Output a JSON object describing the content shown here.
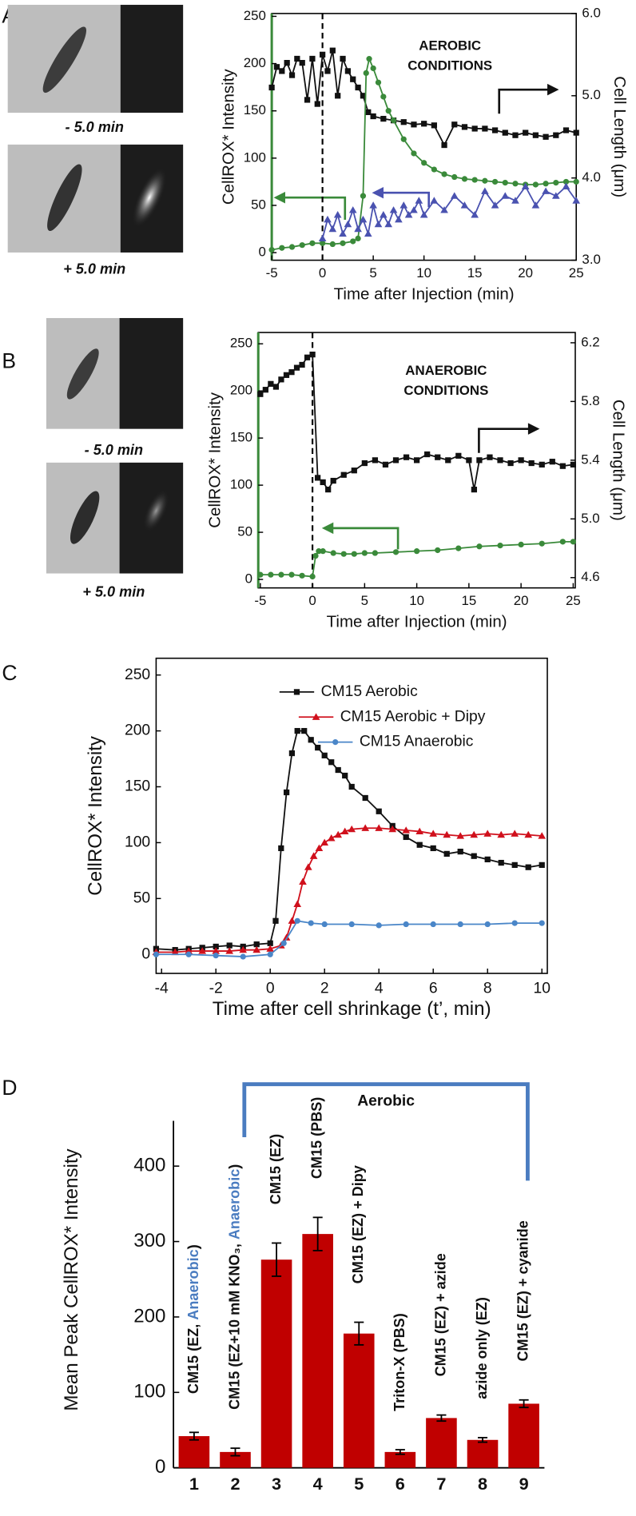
{
  "chart_data": [
    {
      "panel": "A",
      "type": "line",
      "image_captions": [
        "- 5.0 min",
        "+ 5.0 min"
      ],
      "annotation": [
        "AEROBIC",
        "CONDITIONS"
      ],
      "xlabel": "Time after Injection (min)",
      "ylabel": "CellROX* Intensity",
      "y2label": "Cell Length (μm)",
      "xlim": [
        -5,
        25
      ],
      "xticks": [
        -5,
        0,
        5,
        10,
        15,
        20,
        25
      ],
      "ylim": [
        -8,
        253
      ],
      "yticks": [
        0,
        50,
        100,
        150,
        200,
        250
      ],
      "y2lim": [
        3,
        6
      ],
      "y2ticks": [
        {
          "value": 3,
          "label": "3.0"
        },
        {
          "value": 4,
          "label": "4.0"
        },
        {
          "value": 5,
          "label": "5.0"
        },
        {
          "value": 6,
          "label": "6.0"
        }
      ],
      "axis_color": "#3a8a3a",
      "vline_x": 0,
      "series": [
        {
          "color": "#111111",
          "marker": "square",
          "axis": "y2",
          "x": [
            -5,
            -4.5,
            -4,
            -3.5,
            -3,
            -2.5,
            -2,
            -1.5,
            -1,
            -0.5,
            0,
            0.5,
            1,
            1.5,
            2,
            2.5,
            3,
            3.5,
            4,
            4.5,
            5,
            6,
            7,
            8,
            9,
            10,
            11,
            12,
            13,
            14,
            15,
            16,
            17,
            18,
            19,
            20,
            21,
            22,
            23,
            24,
            25
          ],
          "values": [
            5.1,
            5.35,
            5.3,
            5.4,
            5.25,
            5.45,
            5.4,
            4.95,
            5.45,
            4.9,
            5.5,
            5.3,
            5.55,
            5.0,
            5.45,
            5.3,
            5.2,
            5.1,
            5.0,
            4.8,
            4.75,
            4.72,
            4.7,
            4.68,
            4.65,
            4.66,
            4.64,
            4.4,
            4.65,
            4.62,
            4.6,
            4.6,
            4.58,
            4.55,
            4.52,
            4.55,
            4.52,
            4.5,
            4.52,
            4.58,
            4.55
          ]
        },
        {
          "color": "#3a8a3a",
          "marker": "circle",
          "x": [
            -5,
            -4,
            -3,
            -2,
            -1,
            0,
            1,
            2,
            3,
            3.5,
            4,
            4.3,
            4.6,
            5,
            5.5,
            6,
            6.5,
            7,
            8,
            9,
            10,
            11,
            12,
            13,
            14,
            15,
            16,
            17,
            18,
            19,
            20,
            21,
            22,
            23,
            24,
            25
          ],
          "values": [
            3,
            5,
            6,
            8,
            10,
            10,
            9,
            10,
            12,
            15,
            60,
            190,
            205,
            195,
            180,
            165,
            150,
            140,
            120,
            105,
            95,
            88,
            83,
            80,
            78,
            77,
            76,
            75,
            74,
            73,
            72,
            72,
            73,
            74,
            75,
            75
          ]
        },
        {
          "color": "#4a52b0",
          "marker": "triangle",
          "x": [
            0,
            0.5,
            1,
            1.5,
            2,
            2.5,
            3,
            3.5,
            4,
            4.5,
            5,
            5.5,
            6,
            6.5,
            7,
            7.5,
            8,
            8.5,
            9,
            9.5,
            10,
            11,
            12,
            13,
            14,
            15,
            16,
            17,
            18,
            19,
            20,
            21,
            22,
            23,
            24,
            25
          ],
          "values": [
            15,
            35,
            25,
            40,
            20,
            30,
            45,
            25,
            35,
            20,
            50,
            30,
            40,
            30,
            45,
            35,
            50,
            40,
            45,
            55,
            40,
            55,
            45,
            60,
            50,
            40,
            65,
            50,
            60,
            55,
            70,
            50,
            65,
            60,
            70,
            55
          ]
        }
      ]
    },
    {
      "panel": "B",
      "type": "line",
      "image_captions": [
        "- 5.0 min",
        "+ 5.0 min"
      ],
      "annotation": [
        "ANAEROBIC",
        "CONDITIONS"
      ],
      "xlabel": "Time after Injection (min)",
      "ylabel": "CellROX* Intensity",
      "y2label": "Cell Length (μm)",
      "xlim": [
        -5.2,
        25.2
      ],
      "xticks": [
        -5,
        0,
        5,
        10,
        15,
        20,
        25
      ],
      "ylim": [
        -9,
        262
      ],
      "yticks": [
        0,
        50,
        100,
        150,
        200,
        250
      ],
      "y2lim": [
        4.53,
        6.27
      ],
      "y2ticks": [
        4.6,
        {
          "value": 5,
          "label": "5.0"
        },
        5.4,
        5.8,
        6.2
      ],
      "axis_color": "#3a8a3a",
      "vline_x": 0,
      "series": [
        {
          "color": "#111111",
          "marker": "square",
          "axis": "y2",
          "x": [
            -5,
            -4.5,
            -4,
            -3.5,
            -3,
            -2.5,
            -2,
            -1.5,
            -1,
            -0.5,
            0,
            0.5,
            1,
            1.5,
            2,
            3,
            4,
            5,
            6,
            7,
            8,
            9,
            10,
            11,
            12,
            13,
            14,
            15,
            15.5,
            16,
            17,
            18,
            19,
            20,
            21,
            22,
            23,
            24,
            25
          ],
          "values": [
            5.85,
            5.88,
            5.92,
            5.9,
            5.95,
            5.98,
            6.0,
            6.03,
            6.05,
            6.1,
            6.12,
            5.28,
            5.25,
            5.2,
            5.26,
            5.3,
            5.33,
            5.38,
            5.4,
            5.37,
            5.4,
            5.42,
            5.4,
            5.44,
            5.42,
            5.4,
            5.43,
            5.4,
            5.2,
            5.4,
            5.42,
            5.4,
            5.38,
            5.4,
            5.38,
            5.37,
            5.39,
            5.36,
            5.37
          ]
        },
        {
          "color": "#3a8a3a",
          "marker": "circle",
          "x": [
            -5,
            -4,
            -3,
            -2,
            -1,
            0,
            0.3,
            0.6,
            1,
            2,
            3,
            4,
            5,
            6,
            8,
            10,
            12,
            14,
            16,
            18,
            20,
            22,
            24,
            25
          ],
          "values": [
            5,
            5,
            5,
            5,
            4,
            3,
            25,
            30,
            30,
            28,
            27,
            27,
            28,
            28,
            29,
            30,
            31,
            33,
            35,
            36,
            37,
            38,
            40,
            40
          ]
        }
      ]
    },
    {
      "panel": "C",
      "type": "line",
      "legend": "upper right",
      "xlabel": "Time after cell shrinkage (t’, min)",
      "ylabel": "CellROX* Intensity",
      "xlim": [
        -4.2,
        10.2
      ],
      "xticks": [
        -4,
        -2,
        0,
        2,
        4,
        6,
        8,
        10
      ],
      "ylim": [
        -17,
        265
      ],
      "yticks": [
        0,
        50,
        100,
        150,
        200,
        250
      ],
      "series": [
        {
          "name": "CM15 Aerobic",
          "color": "#111111",
          "marker": "square",
          "x": [
            -4.2,
            -3.5,
            -3,
            -2.5,
            -2,
            -1.5,
            -1,
            -0.5,
            0,
            0.2,
            0.4,
            0.6,
            0.8,
            1,
            1.25,
            1.5,
            1.75,
            2,
            2.25,
            2.5,
            2.75,
            3,
            3.5,
            4,
            4.5,
            5,
            5.5,
            6,
            6.5,
            7,
            7.5,
            8,
            8.5,
            9,
            9.5,
            10
          ],
          "values": [
            5,
            4,
            5,
            6,
            7,
            8,
            7,
            9,
            10,
            30,
            95,
            145,
            180,
            200,
            200,
            192,
            185,
            178,
            172,
            165,
            160,
            150,
            140,
            128,
            115,
            105,
            98,
            95,
            90,
            92,
            88,
            85,
            82,
            80,
            78,
            80
          ]
        },
        {
          "name": "CM15 Aerobic + Dipy",
          "color": "#d0101c",
          "marker": "triangle",
          "x": [
            -4.2,
            -3.5,
            -3,
            -2.5,
            -2,
            -1.5,
            -1,
            -0.5,
            0,
            0.4,
            0.6,
            0.8,
            1,
            1.2,
            1.4,
            1.6,
            1.8,
            2,
            2.25,
            2.5,
            2.75,
            3,
            3.5,
            4,
            4.5,
            5,
            5.5,
            6,
            6.5,
            7,
            7.5,
            8,
            8.5,
            9,
            9.5,
            10
          ],
          "values": [
            2,
            2,
            3,
            3,
            3,
            3,
            4,
            4,
            5,
            8,
            15,
            30,
            45,
            65,
            78,
            88,
            95,
            100,
            104,
            107,
            110,
            112,
            113,
            113,
            112,
            111,
            110,
            108,
            107,
            106,
            107,
            108,
            107,
            108,
            107,
            106
          ]
        },
        {
          "name": "CM15 Anaerobic",
          "color": "#4a86c8",
          "marker": "circle",
          "x": [
            -4.2,
            -3,
            -2,
            -1,
            0,
            0.5,
            1,
            1.5,
            2,
            3,
            4,
            5,
            6,
            7,
            8,
            9,
            10
          ],
          "values": [
            0,
            0,
            -1,
            -2,
            0,
            10,
            30,
            28,
            27,
            27,
            26,
            27,
            27,
            27,
            27,
            28,
            28
          ]
        }
      ]
    },
    {
      "panel": "D",
      "type": "bar",
      "ylabel": "Mean Peak CellROX* Intensity",
      "categories": [
        "1",
        "2",
        "3",
        "4",
        "5",
        "6",
        "7",
        "8",
        "9"
      ],
      "values": [
        42,
        21,
        276,
        310,
        178,
        21,
        66,
        37,
        85
      ],
      "errors": [
        5,
        5,
        22,
        22,
        15,
        3,
        4,
        3,
        5
      ],
      "color": "#c00000",
      "ylim": [
        0,
        460
      ],
      "yticks": [
        0,
        100,
        200,
        300,
        400
      ],
      "annotation": "Aerobic",
      "annotation_color": "#4a7cc0",
      "bar_labels": [
        [
          {
            "text": "CM15 (EZ, "
          },
          {
            "text": "Anaerobic",
            "color": "#4a7cc0"
          },
          {
            "text": ")"
          }
        ],
        [
          {
            "text": "CM15 (EZ+10 mM KNO₃, "
          },
          {
            "text": "Anaerobic",
            "color": "#4a7cc0"
          },
          {
            "text": ")"
          }
        ],
        [
          {
            "text": "CM15 (EZ)"
          }
        ],
        [
          {
            "text": "CM15 (PBS)"
          }
        ],
        [
          {
            "text": "CM15 (EZ) + Dipy"
          }
        ],
        [
          {
            "text": "Triton-X (PBS)"
          }
        ],
        [
          {
            "text": "CM15 (EZ) + azide"
          }
        ],
        [
          {
            "text": "azide only (EZ)"
          }
        ],
        [
          {
            "text": "CM15 (EZ) + cyanide"
          }
        ]
      ]
    }
  ]
}
